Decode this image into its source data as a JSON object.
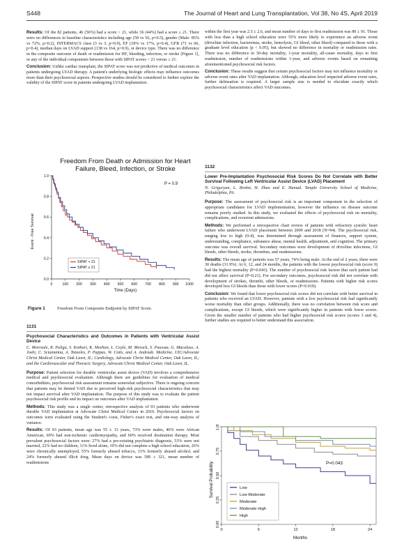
{
  "header": {
    "left": "S448",
    "right": "The Journal of Heart and Lung Transplantation, Vol 38, No 4S, April 2019"
  },
  "col1_top": {
    "results_label": "Results:",
    "results_text": "Of the 82 patients, 46 (56%) had a score < 21, while 36 (44%) had a score ≥ 21. There were no differences in baseline characteristics including age (58 vs 56, p=0.5), gender (Male: 85% vs 72%, p=0.2), INTERMACS class (3 vs 3, p=0.9), EF (18% vs 17%, p=0.4), GFR (71 vs 66, p=0.4), median days on LVAD support (138 vs 164, p=0.9), or device type. There was no difference in the composite outcome of death or readmission for HF, bleeding, infection, or stroke [Figure 1], or any of the individual components between those with SIPAT scores < 21 versus ≥ 21.",
    "conclusion_label": "Conclusion:",
    "conclusion_text": "Unlike cardiac transplant, the SIPAT score was not predictive of medical outcomes in patients undergoing LVAD therapy. A patient's underlying biologic effects may influence outcomes more than their psychosocial aspects. Prospective studies should be considered to further explore the validity of the SIPAT score in patients undergoing LVAD implantation."
  },
  "figure1": {
    "title_line1": "Freedom From Death or Admission for Heart",
    "title_line2": "Failure, Bleed, Infection, or Stroke",
    "p_label": "P = 0.9",
    "ylabel": "Event - Free Survival",
    "xlabel": "Time (Days)",
    "legend": [
      "SIPAT < 21",
      "SIPAT ≥ 21"
    ],
    "caption_label": "Figure 1",
    "caption_text": "Freedom From Composite Endpoint by SIPAT Score.",
    "colors": {
      "series1": "#c0392b",
      "series2": "#2b3a8f"
    },
    "chart_data": {
      "type": "line",
      "title": "Freedom From Death or Admission for Heart Failure, Bleed, Infection, or Stroke",
      "xlabel": "Time (Days)",
      "ylabel": "Event - Free Survival",
      "xlim": [
        0,
        1000
      ],
      "ylim": [
        0,
        1.0
      ],
      "x_ticks": [
        "0",
        "100",
        "200",
        "300",
        "400",
        "500",
        "600",
        "700",
        "800",
        "900",
        "1000"
      ],
      "y_ticks": [
        "0.0",
        "0.2",
        "0.4",
        "0.6",
        "0.8",
        "1.0"
      ],
      "legend_position": "bottom-left",
      "series": [
        {
          "name": "SIPAT < 21",
          "x": [
            0,
            8,
            15,
            22,
            30,
            40,
            50,
            60,
            72,
            85,
            100,
            115,
            130,
            150,
            170,
            190,
            210,
            230,
            260,
            290,
            320,
            360,
            400,
            440,
            480,
            520,
            570,
            620,
            680,
            720,
            760
          ],
          "y": [
            1.0,
            0.97,
            0.93,
            0.9,
            0.86,
            0.82,
            0.78,
            0.74,
            0.7,
            0.66,
            0.62,
            0.6,
            0.57,
            0.55,
            0.52,
            0.5,
            0.47,
            0.45,
            0.42,
            0.39,
            0.36,
            0.33,
            0.3,
            0.27,
            0.24,
            0.22,
            0.19,
            0.17,
            0.14,
            0.12,
            0.1
          ]
        },
        {
          "name": "SIPAT ≥ 21",
          "x": [
            0,
            10,
            18,
            28,
            38,
            50,
            65,
            80,
            95,
            110,
            130,
            150,
            175,
            200,
            230,
            260,
            300,
            340,
            380,
            420,
            470,
            520,
            580,
            640,
            700,
            760,
            830,
            890
          ],
          "y": [
            1.0,
            0.96,
            0.92,
            0.88,
            0.84,
            0.79,
            0.75,
            0.71,
            0.67,
            0.63,
            0.6,
            0.56,
            0.53,
            0.5,
            0.47,
            0.44,
            0.4,
            0.37,
            0.34,
            0.31,
            0.28,
            0.25,
            0.22,
            0.19,
            0.16,
            0.13,
            0.11,
            0.09
          ]
        }
      ]
    }
  },
  "abstract1131": {
    "number": "1131",
    "title": "Psychosocial Characteristics and Outcomes in Patients with Ventricular Assist Device",
    "authors": "C. Morreale, R. Puliga, S. Kothari, K. Meehan, L. Coyle, M. Morack, S. Pauwaa, G. Macaluso, A. Joshi, C. Sciamanna, A. Tatooles, P. Pappas, W. Cotts, and A. Andrade.",
    "affiliation": "Medicine, UIC/Advocate Christ Medical Center, Oak Lawn, IL; Cardiology, Advocate Christ Medical Center, Oak Lawn, IL; and the Cardiovascular and Thoracic Surgery, Advocate Christ Medical Center, Oak Lawn, IL.",
    "purpose_label": "Purpose:",
    "purpose_text": "Patient selection for durable ventricular assist device (VAD) involves a comprehensive medical and psychosocial evaluation. Although there are guidelines for evaluation of medical comorbidities, psychosocial risk assessment remains somewhat subjective. There is ongoing concern that patients may be denied VAD due to perceived high-risk psychosocial characteristics that may not impact survival after VAD implantation. The purpose of this study was to evaluate the patient psychosocial risk profile and its impact on outcomes after VAD implantation.",
    "methods_label": "Methods:",
    "methods_text": "This study was a single center, retrospective analysis of 93 patients who underwent durable VAD implantation at Advocate Christ Medical Center in 2016. Psychosocial factors on outcomes were evaluated using the Student's t-test, Fisher's exact test, and one-way analysis of variance.",
    "results_label": "Results:",
    "results_text": "Of 93 patients, mean age was 55 ± 13 years, 73% were males, 46% were African American, 69% had non-ischemic cardiomyopathy, and 60% received destination therapy. Most prevalent psychosocial factors were: 27% had a pre-existing psychiatric diagnosis, 53% were not married, 22% had no children, 11% lived alone, 19% did not complete a high school education, 26% were chronically unemployed, 55% formerly abused tobacco, 13% formerly abused alcohol, and 24% formerly abused illicit drug. Mean days on device was 589 ± 321, mean number of readmissions"
  },
  "col2_top": {
    "text": "within the first year was 2.5 ± 2.6, and mean number of days to first readmission was 80 ± 91. Those with less than a high school education were 55% more likely to experience an adverse event (driveline infection, bacteremia, stroke, hemolysis, GI bleed, other bleed) compared to those with a graduate level education (p < 0.05), but showed no difference in mortality or readmission rates. There was no difference in 30-day mortality, 1-year mortality, all-cause mortality, days to first readmission, number of readmissions within 1-year, and adverse events based on remaining aforementioned psychosocial risk factors.",
    "conclusion_label": "Conclusion:",
    "conclusion_text": "These results suggest that certain psychosocial factors may not influence mortality or adverse event rates after VAD implantation. Although, education level impacted adverse event rates, further delineation is required. A larger sample size is needed to elucidate exactly which psychosocial characteristics affect VAD outcomes."
  },
  "abstract1132": {
    "number": "1132",
    "title": "Lower Pre-Implantation Psychosocial Risk Scores Do Not Correlate with Better Survival Following Left Ventricular Assist Device (LVAD) Placement",
    "authors": "N. Grigoryan, L. Brobst, H. Zhao and E. Hamad.",
    "affiliation": "Temple University School of Medicine, Philadelphia, PA.",
    "purpose_label": "Purpose:",
    "purpose_text": "The assessment of psychosocial risk is an important component in the selection of appropriate candidates for LVAD implementation, however the influence on disease outcome remains poorly studied. In this study, we evaluated the effects of psychosocial risk on mortality, complications, and recurrent admissions.",
    "methods_label": "Methods:",
    "methods_text": "We performed a retrospective chart review of patients with refractory systolic heart failure who underwent LVAD placement between 2009 and 2018 (N=94). The psychosocial risk, ranging low to high (0-4), was determined through assessment of finances, support system, understanding, compliance, substance abuse, mental health, adjustment, and cognition. The primary outcome was overall survival. Secondary outcomes were development of driveline infections, GI bleeds, other bleeds, stroke, thrombus, and readmissions.",
    "results_label": "Results:",
    "results_text": "The mean age of patients was 57 years, 74% being male. At the end of 2 years, there were 30 deaths (31.9%). At 6, 12, and 24 months, the patients with the lowest psychosocial risk (score 0) had the highest mortality (P=0.043). The number of psychosocial risk factors that each patient had did not affect survival (P=0.21). For secondary outcomes, psychosocial risk did not correlate with development of strokes, thrombi, other bleeds, or readmissions. Patients with higher risk scores developed less GI bleeds than those with lower scores (P=0.018).",
    "conclusion_label": "Conclusion:",
    "conclusion_text": "We found that lower psychosocial risk scores did not correlate with better survival in patients who received an LVAD. However, patients with a low psychosocial risk had significantly worse mortality than other groups. Additionally, there was no correlation between risk score and complications, except GI bleeds, which were significantly higher in patients with lower scores. Given the smaller number of patients who had higher psychosocial risk scores (scores 3 and 4), further studies are required to better understand this association."
  },
  "figure2": {
    "ylabel": "Survival Probability",
    "xlabel": "Months",
    "p_label": "P=0.043",
    "legend": [
      "Low",
      "Low Moderate",
      "Moderate",
      "Moderate High",
      "High"
    ],
    "colors": [
      "#3b3b8f",
      "#8a8a8a",
      "#c9a227",
      "#6f8fb8",
      "#6b8f3a"
    ],
    "chart_data": {
      "type": "line",
      "xlabel": "Months",
      "ylabel": "Survival Probability",
      "xlim": [
        0,
        25
      ],
      "ylim": [
        0,
        1.0
      ],
      "x_ticks": [
        "0",
        "6",
        "12",
        "18",
        "24"
      ],
      "y_ticks": [
        "0.00",
        "0.25",
        "0.50",
        "0.75",
        "1.00"
      ],
      "legend_position": "bottom-left",
      "series": [
        {
          "name": "Low",
          "x": [
            0,
            1,
            2,
            3,
            4,
            6,
            8,
            10,
            12,
            16,
            20,
            24,
            25
          ],
          "y": [
            1.0,
            0.94,
            0.88,
            0.82,
            0.76,
            0.7,
            0.66,
            0.62,
            0.58,
            0.54,
            0.5,
            0.42,
            0.42
          ]
        },
        {
          "name": "Low Moderate",
          "x": [
            0,
            1,
            3,
            6,
            9,
            12,
            15,
            18,
            22,
            25
          ],
          "y": [
            1.0,
            0.96,
            0.9,
            0.86,
            0.82,
            0.78,
            0.74,
            0.72,
            0.7,
            0.7
          ]
        },
        {
          "name": "Moderate",
          "x": [
            0,
            2,
            5,
            8,
            12,
            16,
            20,
            24,
            25
          ],
          "y": [
            1.0,
            0.96,
            0.92,
            0.88,
            0.84,
            0.8,
            0.78,
            0.76,
            0.76
          ]
        },
        {
          "name": "Moderate High",
          "x": [
            0,
            3,
            7,
            12,
            18,
            24,
            25
          ],
          "y": [
            1.0,
            0.95,
            0.9,
            0.86,
            0.82,
            0.8,
            0.8
          ]
        },
        {
          "name": "High",
          "x": [
            0,
            4,
            10,
            16,
            25
          ],
          "y": [
            1.0,
            1.0,
            0.9,
            0.88,
            0.88
          ]
        }
      ]
    }
  }
}
